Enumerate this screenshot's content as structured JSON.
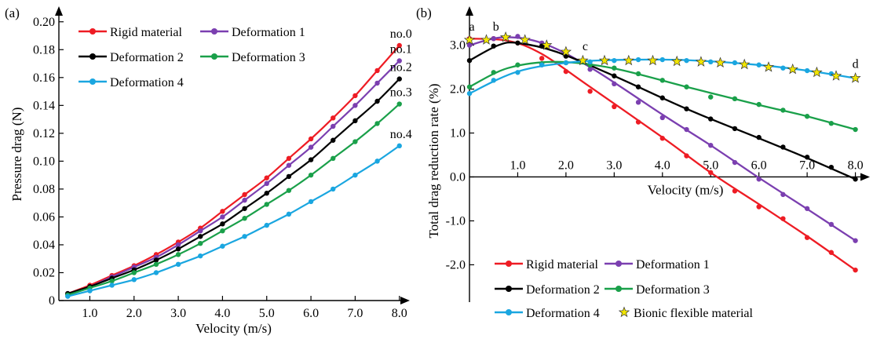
{
  "chart_data": [
    {
      "type": "line",
      "panel_label": "(a)",
      "xlabel": "Velocity (m/s)",
      "ylabel": "Pressure drag (N)",
      "xlim": [
        0.3,
        8.2
      ],
      "ylim": [
        0,
        0.21
      ],
      "x_ticks": [
        1.0,
        2.0,
        3.0,
        4.0,
        5.0,
        6.0,
        7.0,
        8.0
      ],
      "x_tick_labels": [
        "1.0",
        "2.0",
        "3.0",
        "4.0",
        "5.0",
        "6.0",
        "7.0",
        "8.0"
      ],
      "y_ticks": [
        0,
        0.02,
        0.04,
        0.06,
        0.08,
        0.1,
        0.12,
        0.14,
        0.16,
        0.18,
        0.2
      ],
      "y_tick_labels": [
        "0",
        "0.02",
        "0.04",
        "0.06",
        "0.08",
        "0.10",
        "0.12",
        "0.14",
        "0.16",
        "0.18",
        "0.20"
      ],
      "x": [
        0.5,
        1.0,
        1.5,
        2.0,
        2.5,
        3.0,
        3.5,
        4.0,
        4.5,
        5.0,
        5.5,
        6.0,
        6.5,
        7.0,
        7.5,
        8.0
      ],
      "legend_position": "top-left",
      "series": [
        {
          "name": "Rigid material",
          "color": "#ee1c24",
          "legend": "Rigid material",
          "annotation": "no.0",
          "values": [
            0.005,
            0.011,
            0.018,
            0.025,
            0.033,
            0.042,
            0.052,
            0.064,
            0.076,
            0.088,
            0.102,
            0.116,
            0.131,
            0.147,
            0.165,
            0.183
          ]
        },
        {
          "name": "Deformation 1",
          "color": "#7b3fb0",
          "legend": "Deformation 1",
          "annotation": "no.1",
          "values": [
            0.005,
            0.01,
            0.017,
            0.024,
            0.031,
            0.04,
            0.05,
            0.06,
            0.072,
            0.084,
            0.097,
            0.11,
            0.125,
            0.14,
            0.156,
            0.172
          ]
        },
        {
          "name": "Deformation 2",
          "color": "#000000",
          "legend": "Deformation 2",
          "annotation": "no.2",
          "values": [
            0.005,
            0.01,
            0.016,
            0.022,
            0.029,
            0.037,
            0.046,
            0.055,
            0.066,
            0.077,
            0.089,
            0.101,
            0.115,
            0.129,
            0.143,
            0.159
          ]
        },
        {
          "name": "Deformation 3",
          "color": "#1aa04a",
          "legend": "Deformation 3",
          "annotation": "no.3",
          "values": [
            0.004,
            0.009,
            0.014,
            0.02,
            0.026,
            0.033,
            0.041,
            0.05,
            0.059,
            0.069,
            0.079,
            0.09,
            0.102,
            0.114,
            0.127,
            0.141
          ]
        },
        {
          "name": "Deformation 4",
          "color": "#1aa6e0",
          "legend": "Deformation 4",
          "annotation": "no.4",
          "values": [
            0.003,
            0.007,
            0.011,
            0.015,
            0.02,
            0.026,
            0.032,
            0.039,
            0.046,
            0.054,
            0.062,
            0.071,
            0.08,
            0.09,
            0.1,
            0.111
          ]
        }
      ]
    },
    {
      "type": "line",
      "panel_label": "(b)",
      "xlabel": "Velocity (m/s)",
      "ylabel": "Total drag reduction rate (%)",
      "xlim": [
        0.0,
        8.3
      ],
      "ylim": [
        -2.85,
        3.85
      ],
      "x_ticks": [
        1.0,
        2.0,
        3.0,
        4.0,
        5.0,
        6.0,
        7.0,
        8.0
      ],
      "x_tick_labels": [
        "1.0",
        "2.0",
        "3.0",
        "4.0",
        "5.0",
        "6.0",
        "7.0",
        "8.0"
      ],
      "y_ticks": [
        -2.0,
        -1.0,
        0.0,
        1.0,
        2.0,
        3.0
      ],
      "y_tick_labels": [
        "-2.0",
        "-1.0",
        "0.0",
        "1.0",
        "2.0",
        "3.0"
      ],
      "legend_position": "bottom",
      "annotations": [
        {
          "text": "a",
          "x": 0.05,
          "y": 3.3
        },
        {
          "text": "b",
          "x": 0.55,
          "y": 3.3
        },
        {
          "text": "c",
          "x": 2.4,
          "y": 2.85
        },
        {
          "text": "d",
          "x": 8.0,
          "y": 2.45
        }
      ],
      "series": [
        {
          "name": "Rigid material",
          "color": "#ee1c24",
          "legend": "Rigid material",
          "points": [
            [
              0.0,
              3.15
            ],
            [
              0.5,
              3.15
            ],
            [
              1.0,
              3.05
            ],
            [
              1.5,
              2.7
            ],
            [
              2.0,
              2.4
            ],
            [
              2.5,
              1.95
            ],
            [
              3.0,
              1.6
            ],
            [
              3.5,
              1.25
            ],
            [
              4.0,
              0.88
            ],
            [
              4.5,
              0.48
            ],
            [
              5.0,
              0.1
            ],
            [
              5.5,
              -0.32
            ],
            [
              6.0,
              -0.68
            ],
            [
              6.5,
              -0.95
            ],
            [
              7.0,
              -1.38
            ],
            [
              7.5,
              -1.72
            ],
            [
              8.0,
              -2.12
            ]
          ],
          "curve": [
            [
              0.0,
              3.15
            ],
            [
              0.8,
              3.1
            ],
            [
              1.5,
              2.8
            ],
            [
              2.5,
              2.05
            ],
            [
              4.0,
              0.9
            ],
            [
              5.0,
              0.1
            ],
            [
              6.0,
              -0.62
            ],
            [
              7.0,
              -1.35
            ],
            [
              8.0,
              -2.12
            ]
          ]
        },
        {
          "name": "Deformation 1",
          "color": "#7b3fb0",
          "legend": "Deformation 1",
          "points": [
            [
              0.0,
              3.0
            ],
            [
              0.5,
              3.15
            ],
            [
              1.0,
              3.2
            ],
            [
              1.5,
              3.05
            ],
            [
              2.0,
              2.85
            ],
            [
              2.5,
              2.45
            ],
            [
              3.0,
              2.12
            ],
            [
              3.5,
              1.7
            ],
            [
              4.0,
              1.35
            ],
            [
              4.5,
              1.08
            ],
            [
              5.0,
              0.72
            ],
            [
              5.5,
              0.33
            ],
            [
              6.0,
              -0.05
            ],
            [
              6.5,
              -0.4
            ],
            [
              7.0,
              -0.72
            ],
            [
              7.5,
              -1.08
            ],
            [
              8.0,
              -1.45
            ]
          ],
          "curve": [
            [
              0.0,
              3.0
            ],
            [
              0.7,
              3.18
            ],
            [
              1.5,
              3.05
            ],
            [
              2.5,
              2.5
            ],
            [
              4.0,
              1.42
            ],
            [
              5.0,
              0.72
            ],
            [
              6.0,
              -0.02
            ],
            [
              7.0,
              -0.73
            ],
            [
              8.0,
              -1.45
            ]
          ]
        },
        {
          "name": "Deformation 2",
          "color": "#000000",
          "legend": "Deformation 2",
          "points": [
            [
              0.0,
              2.65
            ],
            [
              0.5,
              2.98
            ],
            [
              1.0,
              3.05
            ],
            [
              1.5,
              2.98
            ],
            [
              2.0,
              2.75
            ],
            [
              2.5,
              2.55
            ],
            [
              3.0,
              2.3
            ],
            [
              3.5,
              2.05
            ],
            [
              4.0,
              1.8
            ],
            [
              4.5,
              1.55
            ],
            [
              5.0,
              1.32
            ],
            [
              5.5,
              1.1
            ],
            [
              6.0,
              0.9
            ],
            [
              6.5,
              0.68
            ],
            [
              7.0,
              0.45
            ],
            [
              7.5,
              0.22
            ],
            [
              8.0,
              -0.05
            ]
          ],
          "curve": [
            [
              0.0,
              2.65
            ],
            [
              0.6,
              3.0
            ],
            [
              1.0,
              3.05
            ],
            [
              1.8,
              2.85
            ],
            [
              3.0,
              2.3
            ],
            [
              4.5,
              1.55
            ],
            [
              6.0,
              0.88
            ],
            [
              7.0,
              0.43
            ],
            [
              8.0,
              -0.05
            ]
          ]
        },
        {
          "name": "Deformation 3",
          "color": "#1aa04a",
          "legend": "Deformation 3",
          "points": [
            [
              0.0,
              2.05
            ],
            [
              0.5,
              2.38
            ],
            [
              1.0,
              2.55
            ],
            [
              1.5,
              2.58
            ],
            [
              2.0,
              2.6
            ],
            [
              2.5,
              2.55
            ],
            [
              3.0,
              2.48
            ],
            [
              3.5,
              2.35
            ],
            [
              4.0,
              2.2
            ],
            [
              4.5,
              2.05
            ],
            [
              5.0,
              1.82
            ],
            [
              5.5,
              1.78
            ],
            [
              6.0,
              1.65
            ],
            [
              6.5,
              1.52
            ],
            [
              7.0,
              1.38
            ],
            [
              7.5,
              1.22
            ],
            [
              8.0,
              1.08
            ]
          ],
          "curve": [
            [
              0.0,
              2.05
            ],
            [
              0.8,
              2.48
            ],
            [
              1.8,
              2.62
            ],
            [
              3.0,
              2.47
            ],
            [
              4.5,
              2.05
            ],
            [
              6.0,
              1.64
            ],
            [
              7.0,
              1.38
            ],
            [
              8.0,
              1.08
            ]
          ]
        },
        {
          "name": "Deformation 4",
          "color": "#1aa6e0",
          "legend": "Deformation 4",
          "points": [
            [
              0.0,
              1.9
            ],
            [
              0.5,
              2.2
            ],
            [
              1.0,
              2.38
            ],
            [
              1.5,
              2.55
            ],
            [
              2.0,
              2.6
            ],
            [
              2.5,
              2.62
            ],
            [
              3.0,
              2.65
            ],
            [
              3.5,
              2.67
            ],
            [
              4.0,
              2.67
            ],
            [
              4.5,
              2.65
            ],
            [
              5.0,
              2.62
            ],
            [
              5.5,
              2.6
            ],
            [
              6.0,
              2.55
            ],
            [
              6.5,
              2.48
            ],
            [
              7.0,
              2.42
            ],
            [
              7.5,
              2.35
            ],
            [
              8.0,
              2.25
            ]
          ],
          "curve": [
            [
              0.0,
              1.9
            ],
            [
              1.0,
              2.4
            ],
            [
              2.2,
              2.62
            ],
            [
              3.5,
              2.67
            ],
            [
              4.5,
              2.66
            ],
            [
              6.0,
              2.55
            ],
            [
              7.0,
              2.42
            ],
            [
              8.0,
              2.25
            ]
          ]
        },
        {
          "name": "Bionic flexible material",
          "color": "#f2e600",
          "legend": "Bionic flexible material",
          "marker": "star",
          "points": [
            [
              0.0,
              3.12
            ],
            [
              0.35,
              3.12
            ],
            [
              0.75,
              3.18
            ],
            [
              1.15,
              3.12
            ],
            [
              1.6,
              3.0
            ],
            [
              2.0,
              2.85
            ],
            [
              2.35,
              2.65
            ],
            [
              2.8,
              2.65
            ],
            [
              3.3,
              2.65
            ],
            [
              3.8,
              2.65
            ],
            [
              4.3,
              2.63
            ],
            [
              4.8,
              2.62
            ],
            [
              5.2,
              2.6
            ],
            [
              5.7,
              2.56
            ],
            [
              6.2,
              2.5
            ],
            [
              6.7,
              2.45
            ],
            [
              7.2,
              2.38
            ],
            [
              7.6,
              2.3
            ],
            [
              8.0,
              2.25
            ]
          ]
        }
      ]
    }
  ]
}
